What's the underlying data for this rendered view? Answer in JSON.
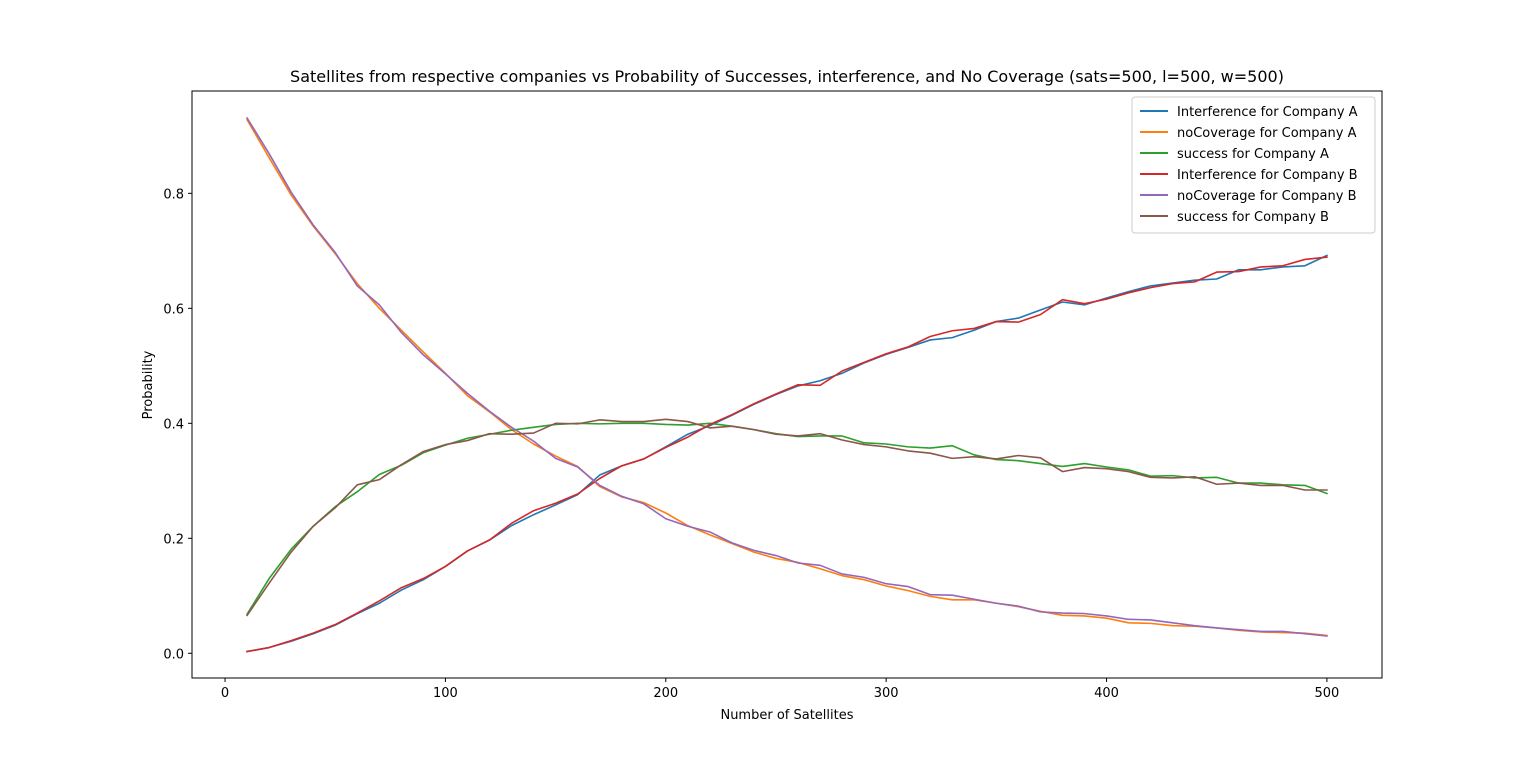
{
  "chart_data": {
    "type": "line",
    "title": "Satellites from respective companies vs Probability of Successes, interference, and No Coverage (sats=500, l=500, w=500)",
    "xlabel": "Number of Satellites",
    "ylabel": "Probability",
    "xlim": [
      -15,
      525
    ],
    "ylim": [
      -0.043,
      0.978
    ],
    "xticks": [
      0,
      100,
      200,
      300,
      400,
      500
    ],
    "yticks": [
      0.0,
      0.2,
      0.4,
      0.6,
      0.8
    ],
    "ytick_labels": [
      "0.0",
      "0.2",
      "0.4",
      "0.6",
      "0.8"
    ],
    "legend_position": "top-right",
    "grid": false,
    "x": [
      10,
      20,
      30,
      40,
      50,
      60,
      70,
      80,
      90,
      100,
      110,
      120,
      130,
      140,
      150,
      160,
      170,
      180,
      190,
      200,
      210,
      220,
      230,
      240,
      250,
      260,
      270,
      280,
      290,
      300,
      310,
      320,
      330,
      340,
      350,
      360,
      370,
      380,
      390,
      400,
      410,
      420,
      430,
      440,
      450,
      460,
      470,
      480,
      490,
      500
    ],
    "series": [
      {
        "name": "Interference for Company A",
        "color": "#1f77b4",
        "values": [
          0.003,
          0.01,
          0.021,
          0.034,
          0.049,
          0.069,
          0.087,
          0.11,
          0.128,
          0.151,
          0.178,
          0.197,
          0.222,
          0.241,
          0.258,
          0.276,
          0.31,
          0.326,
          0.338,
          0.359,
          0.381,
          0.396,
          0.414,
          0.433,
          0.45,
          0.465,
          0.474,
          0.487,
          0.505,
          0.52,
          0.532,
          0.545,
          0.549,
          0.562,
          0.577,
          0.583,
          0.597,
          0.611,
          0.606,
          0.618,
          0.629,
          0.639,
          0.644,
          0.649,
          0.651,
          0.667,
          0.667,
          0.672,
          0.674,
          0.692
        ]
      },
      {
        "name": "noCoverage for Company A",
        "color": "#ff7f0e",
        "values": [
          0.928,
          0.862,
          0.797,
          0.743,
          0.695,
          0.643,
          0.6,
          0.562,
          0.524,
          0.487,
          0.448,
          0.42,
          0.389,
          0.364,
          0.343,
          0.325,
          0.29,
          0.272,
          0.262,
          0.244,
          0.222,
          0.206,
          0.191,
          0.176,
          0.165,
          0.158,
          0.147,
          0.135,
          0.128,
          0.117,
          0.109,
          0.099,
          0.093,
          0.093,
          0.087,
          0.081,
          0.073,
          0.066,
          0.065,
          0.061,
          0.053,
          0.052,
          0.048,
          0.047,
          0.044,
          0.04,
          0.037,
          0.036,
          0.035,
          0.031
        ]
      },
      {
        "name": "success for Company A",
        "color": "#2ca02c",
        "values": [
          0.068,
          0.13,
          0.181,
          0.221,
          0.255,
          0.281,
          0.311,
          0.327,
          0.349,
          0.362,
          0.374,
          0.381,
          0.388,
          0.393,
          0.398,
          0.4,
          0.399,
          0.4,
          0.4,
          0.398,
          0.397,
          0.4,
          0.395,
          0.389,
          0.382,
          0.377,
          0.378,
          0.378,
          0.366,
          0.364,
          0.359,
          0.357,
          0.361,
          0.345,
          0.337,
          0.335,
          0.33,
          0.325,
          0.33,
          0.324,
          0.319,
          0.308,
          0.309,
          0.305,
          0.306,
          0.296,
          0.296,
          0.293,
          0.292,
          0.278
        ]
      },
      {
        "name": "Interference for Company B",
        "color": "#d62728",
        "values": [
          0.003,
          0.01,
          0.022,
          0.035,
          0.05,
          0.07,
          0.091,
          0.114,
          0.13,
          0.151,
          0.178,
          0.197,
          0.226,
          0.248,
          0.261,
          0.277,
          0.304,
          0.326,
          0.338,
          0.358,
          0.376,
          0.398,
          0.415,
          0.434,
          0.451,
          0.467,
          0.466,
          0.491,
          0.506,
          0.521,
          0.533,
          0.551,
          0.561,
          0.565,
          0.577,
          0.576,
          0.589,
          0.615,
          0.608,
          0.616,
          0.627,
          0.636,
          0.643,
          0.646,
          0.663,
          0.664,
          0.672,
          0.674,
          0.685,
          0.689
        ]
      },
      {
        "name": "noCoverage for Company B",
        "color": "#9467bd",
        "values": [
          0.931,
          0.869,
          0.802,
          0.745,
          0.697,
          0.639,
          0.606,
          0.558,
          0.519,
          0.486,
          0.452,
          0.421,
          0.393,
          0.369,
          0.339,
          0.324,
          0.292,
          0.273,
          0.26,
          0.234,
          0.221,
          0.211,
          0.192,
          0.179,
          0.17,
          0.157,
          0.153,
          0.138,
          0.132,
          0.121,
          0.116,
          0.102,
          0.101,
          0.094,
          0.087,
          0.082,
          0.072,
          0.07,
          0.069,
          0.065,
          0.059,
          0.058,
          0.053,
          0.048,
          0.044,
          0.041,
          0.038,
          0.038,
          0.034,
          0.03
        ]
      },
      {
        "name": "success for Company B",
        "color": "#8c564b",
        "values": [
          0.066,
          0.122,
          0.176,
          0.221,
          0.253,
          0.293,
          0.302,
          0.328,
          0.351,
          0.363,
          0.37,
          0.382,
          0.381,
          0.383,
          0.4,
          0.399,
          0.406,
          0.403,
          0.403,
          0.407,
          0.403,
          0.392,
          0.395,
          0.389,
          0.381,
          0.378,
          0.382,
          0.371,
          0.363,
          0.359,
          0.352,
          0.348,
          0.339,
          0.342,
          0.338,
          0.344,
          0.34,
          0.316,
          0.323,
          0.321,
          0.316,
          0.306,
          0.305,
          0.307,
          0.294,
          0.296,
          0.292,
          0.292,
          0.284,
          0.284
        ]
      }
    ]
  }
}
